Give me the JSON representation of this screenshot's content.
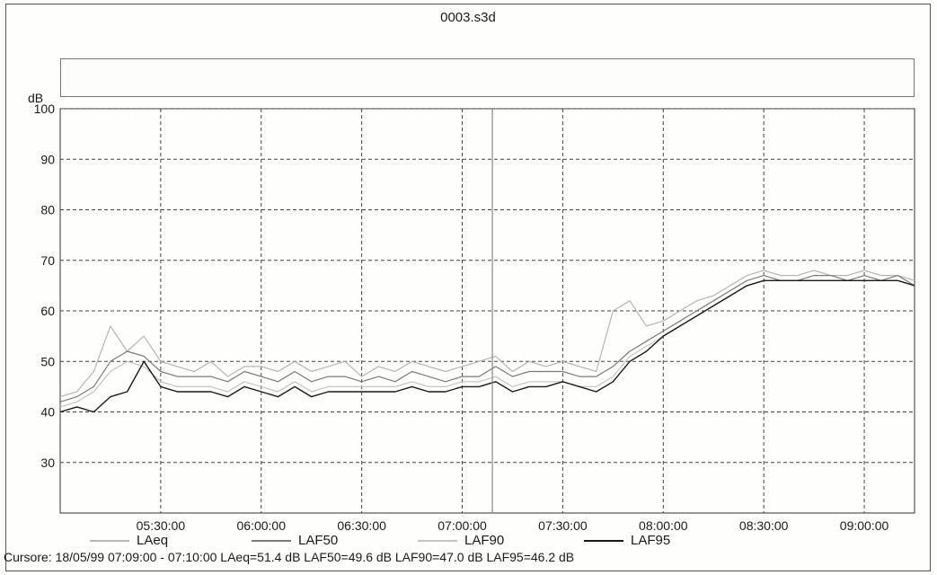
{
  "window": {
    "title": "0003.s3d"
  },
  "status": {
    "cursor_text": "Cursore: 18/05/99 07:09:00 - 07:10:00  LAeq=51.4 dB  LAF50=49.6 dB  LAF90=47.0 dB  LAF95=46.2 dB"
  },
  "chart_data": {
    "type": "line",
    "title": "",
    "xlabel": "",
    "ylabel": "dB",
    "ylim": [
      20,
      100
    ],
    "xlim": [
      "05:00:00",
      "09:15:00"
    ],
    "yticks": [
      30,
      40,
      50,
      60,
      70,
      80,
      90,
      100
    ],
    "xticks": [
      "05:30:00",
      "06:00:00",
      "06:30:00",
      "07:00:00",
      "07:30:00",
      "08:00:00",
      "08:30:00",
      "09:00:00"
    ],
    "grid": true,
    "legend_position": "bottom",
    "cursor_x": "07:09:00",
    "x": [
      "05:00:00",
      "05:05:00",
      "05:10:00",
      "05:15:00",
      "05:20:00",
      "05:25:00",
      "05:30:00",
      "05:35:00",
      "05:40:00",
      "05:45:00",
      "05:50:00",
      "05:55:00",
      "06:00:00",
      "06:05:00",
      "06:10:00",
      "06:15:00",
      "06:20:00",
      "06:25:00",
      "06:30:00",
      "06:35:00",
      "06:40:00",
      "06:45:00",
      "06:50:00",
      "06:55:00",
      "07:00:00",
      "07:05:00",
      "07:10:00",
      "07:15:00",
      "07:20:00",
      "07:25:00",
      "07:30:00",
      "07:35:00",
      "07:40:00",
      "07:45:00",
      "07:50:00",
      "07:55:00",
      "08:00:00",
      "08:05:00",
      "08:10:00",
      "08:15:00",
      "08:20:00",
      "08:25:00",
      "08:30:00",
      "08:35:00",
      "08:40:00",
      "08:45:00",
      "08:50:00",
      "08:55:00",
      "09:00:00",
      "09:05:00",
      "09:10:00",
      "09:15:00"
    ],
    "series": [
      {
        "name": "LAeq",
        "color": "#b5b5b5",
        "values": [
          43,
          44,
          48,
          57,
          52,
          55,
          50,
          49,
          48,
          50,
          47,
          49,
          49,
          48,
          50,
          48,
          49,
          50,
          47,
          49,
          48,
          50,
          49,
          48,
          49,
          50,
          51,
          48,
          50,
          49,
          50,
          49,
          48,
          60,
          62,
          57,
          58,
          60,
          62,
          63,
          65,
          67,
          68,
          67,
          67,
          68,
          67,
          67,
          68,
          67,
          67,
          66
        ]
      },
      {
        "name": "LAF50",
        "color": "#7a7a7a",
        "values": [
          42,
          43,
          45,
          50,
          52,
          51,
          48,
          47,
          47,
          47,
          46,
          48,
          47,
          46,
          48,
          46,
          47,
          47,
          46,
          47,
          46,
          48,
          47,
          46,
          47,
          47,
          49,
          47,
          48,
          48,
          48,
          47,
          47,
          49,
          52,
          54,
          56,
          58,
          60,
          62,
          64,
          66,
          67,
          66,
          66,
          67,
          67,
          66,
          67,
          66,
          67,
          65
        ]
      },
      {
        "name": "LAF90",
        "color": "#c4c4c4",
        "values": [
          41,
          42,
          44,
          48,
          50,
          49,
          46,
          45,
          45,
          45,
          44,
          46,
          45,
          44,
          46,
          44,
          45,
          45,
          45,
          45,
          45,
          46,
          45,
          45,
          46,
          46,
          47,
          45,
          46,
          46,
          46,
          45,
          45,
          47,
          51,
          53,
          55,
          57,
          59,
          61,
          63,
          65,
          66,
          66,
          66,
          66,
          66,
          66,
          66,
          66,
          66,
          65
        ]
      },
      {
        "name": "LAF95",
        "color": "#1a1a1a",
        "values": [
          40,
          41,
          40,
          43,
          44,
          50,
          45,
          44,
          44,
          44,
          43,
          45,
          44,
          43,
          45,
          43,
          44,
          44,
          44,
          44,
          44,
          45,
          44,
          44,
          45,
          45,
          46,
          44,
          45,
          45,
          46,
          45,
          44,
          46,
          50,
          52,
          55,
          57,
          59,
          61,
          63,
          65,
          66,
          66,
          66,
          66,
          66,
          66,
          66,
          66,
          66,
          65
        ]
      }
    ]
  }
}
